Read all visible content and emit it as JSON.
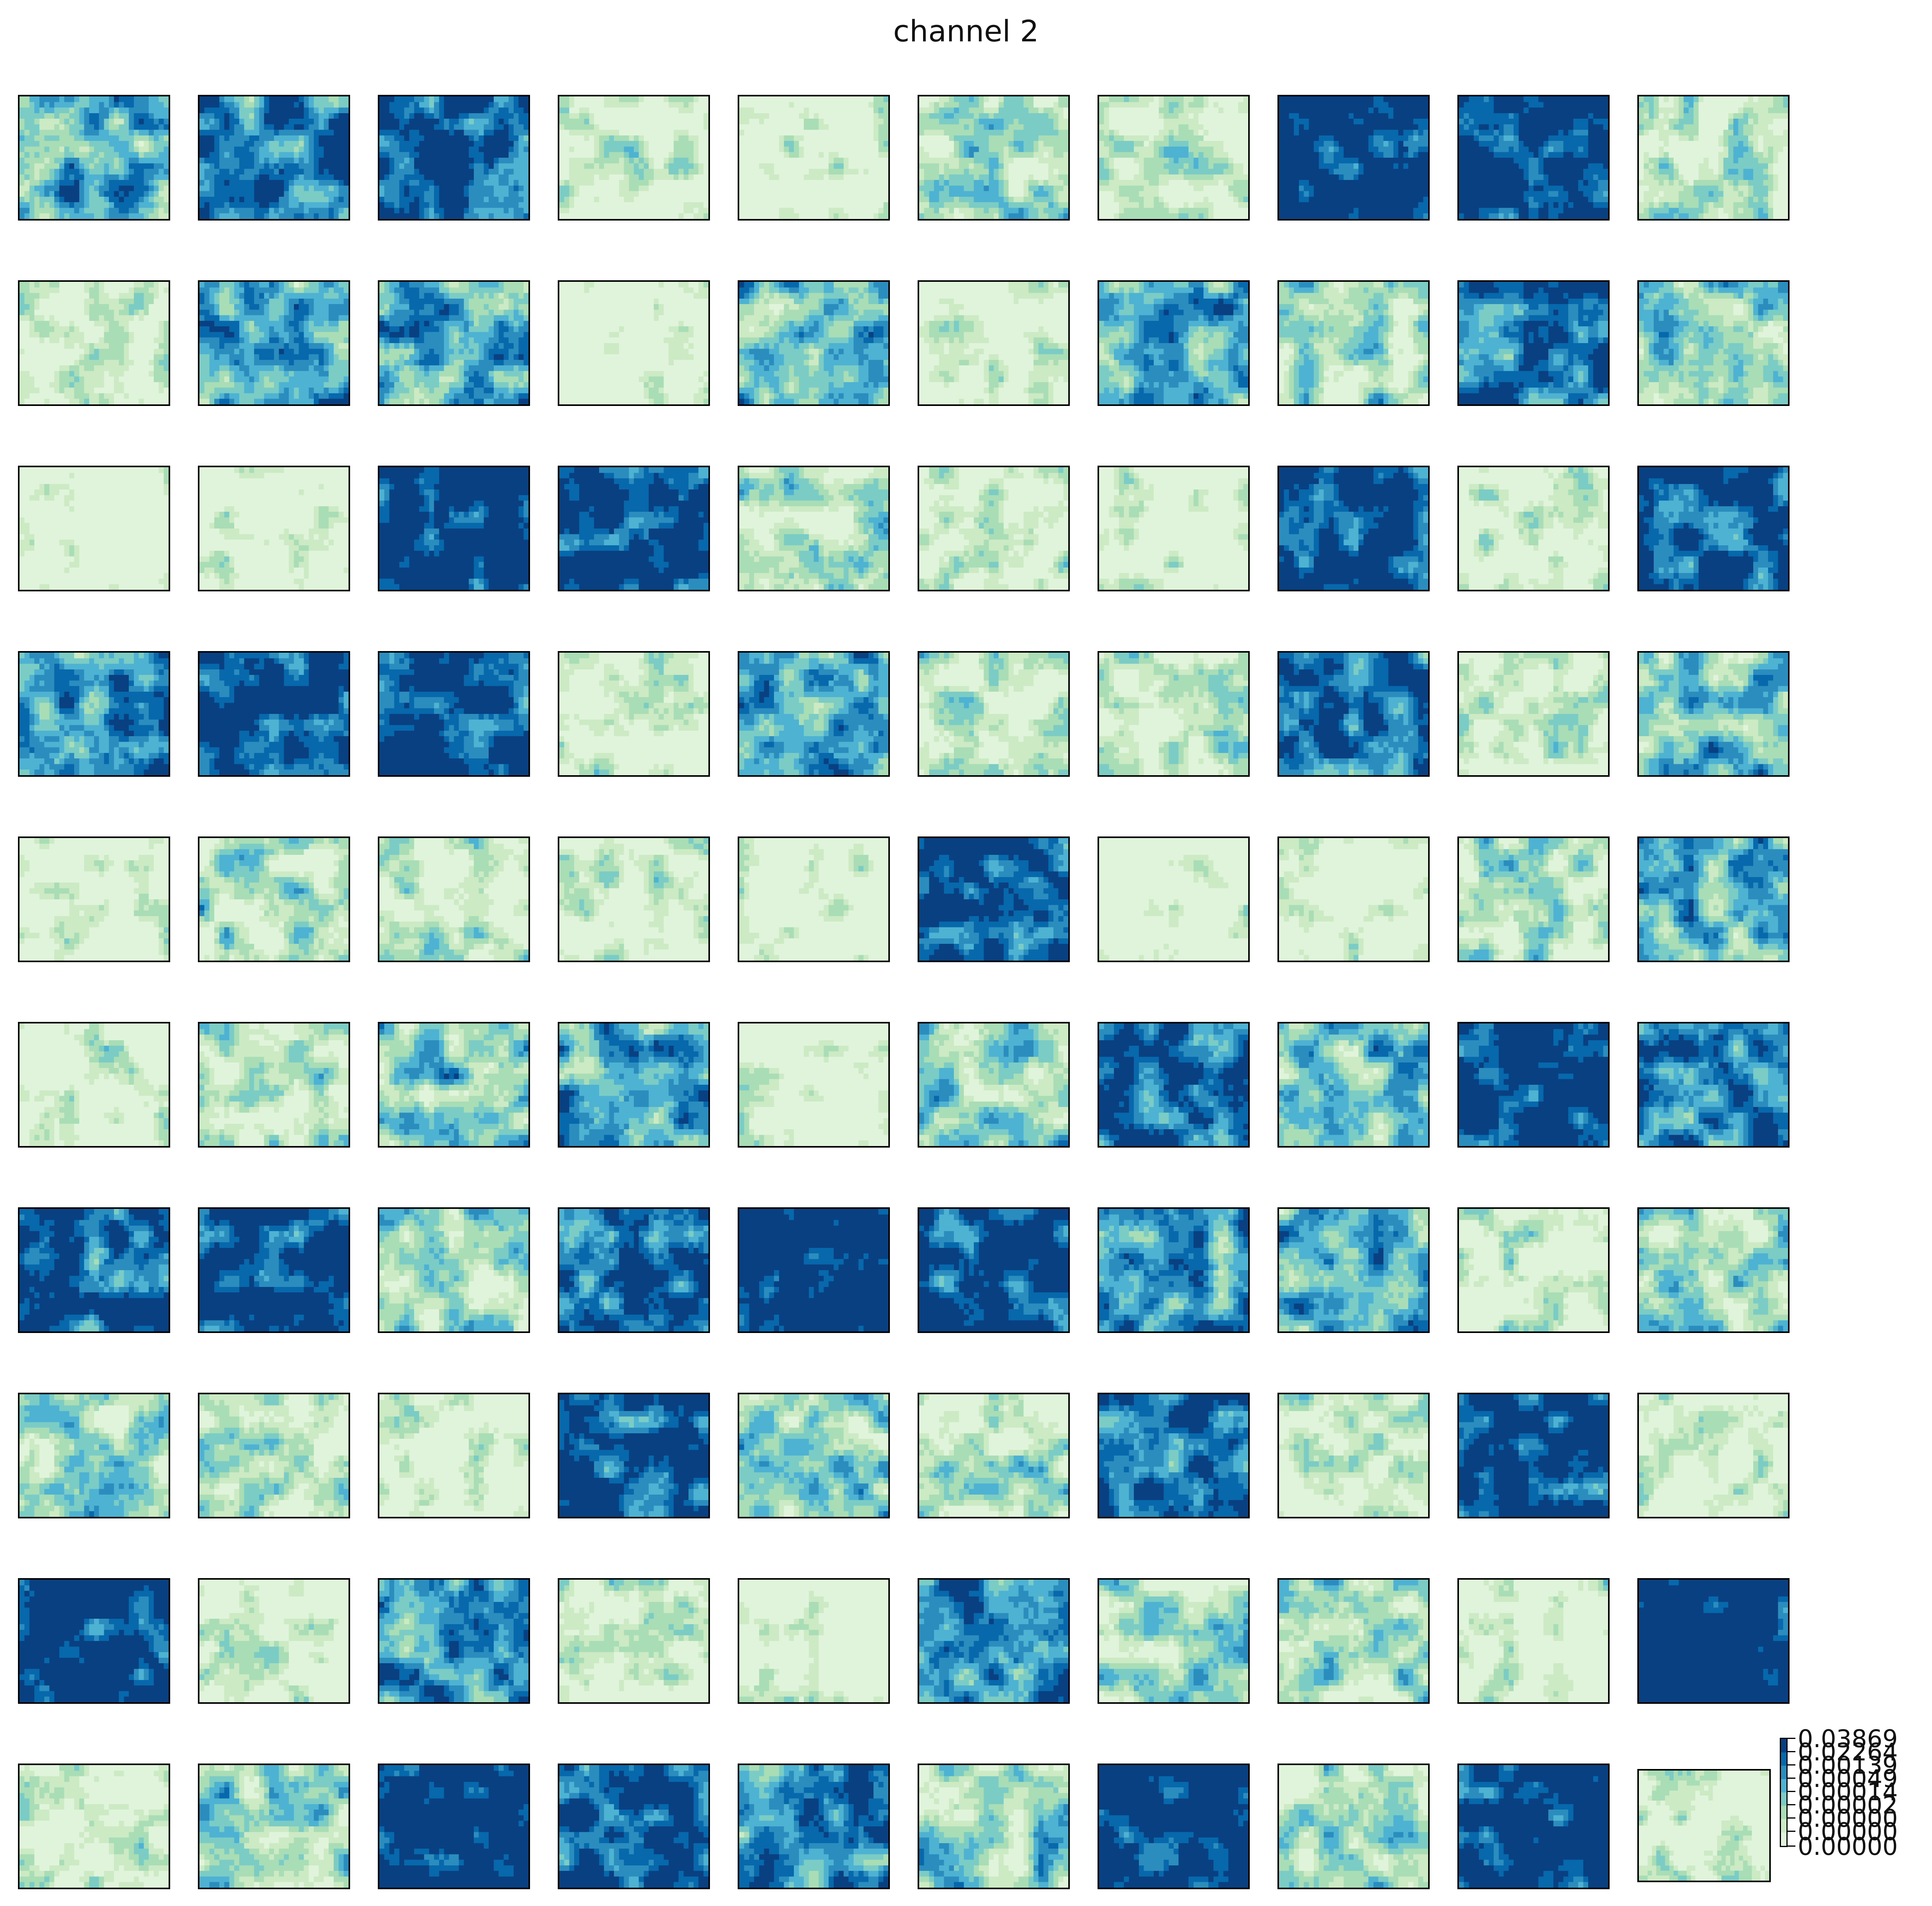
{
  "title": "channel 2",
  "chart_data": {
    "type": "heatmap",
    "title": "channel 2",
    "grid": "10x10 small multiples",
    "colormap": "GnBu",
    "palette": [
      "#e0f3db",
      "#ccebc5",
      "#a8ddb5",
      "#7bccc4",
      "#4eb3d3",
      "#2b8cbe",
      "#0868ac",
      "#084081"
    ],
    "colorbar": {
      "ticks": [
        "0.03869",
        "0.02264",
        "0.00139",
        "0.00049",
        "0.00014",
        "0.00002",
        "0.00000",
        "0.00000"
      ],
      "min_label": "0.00000",
      "max_label": "0.03869",
      "scale": "nonlinear"
    },
    "panels": {
      "rows": 10,
      "cols": 10,
      "darkness": [
        [
          0.55,
          0.7,
          0.78,
          0.25,
          0.12,
          0.35,
          0.22,
          0.88,
          0.82,
          0.25
        ],
        [
          0.2,
          0.55,
          0.55,
          0.08,
          0.5,
          0.15,
          0.55,
          0.35,
          0.75,
          0.42
        ],
        [
          0.05,
          0.1,
          0.92,
          0.85,
          0.3,
          0.18,
          0.1,
          0.82,
          0.15,
          0.78
        ],
        [
          0.62,
          0.85,
          0.85,
          0.12,
          0.55,
          0.25,
          0.22,
          0.72,
          0.18,
          0.48
        ],
        [
          0.1,
          0.3,
          0.25,
          0.18,
          0.08,
          0.82,
          0.05,
          0.05,
          0.32,
          0.5
        ],
        [
          0.15,
          0.28,
          0.45,
          0.6,
          0.12,
          0.42,
          0.72,
          0.45,
          0.88,
          0.65
        ],
        [
          0.72,
          0.85,
          0.35,
          0.78,
          0.88,
          0.8,
          0.6,
          0.5,
          0.18,
          0.35
        ],
        [
          0.32,
          0.32,
          0.15,
          0.78,
          0.42,
          0.32,
          0.72,
          0.2,
          0.82,
          0.15
        ],
        [
          0.85,
          0.15,
          0.62,
          0.18,
          0.05,
          0.65,
          0.35,
          0.35,
          0.12,
          0.92
        ],
        [
          0.2,
          0.42,
          0.88,
          0.82,
          0.65,
          0.4,
          0.92,
          0.3,
          0.85,
          0.15
        ]
      ]
    }
  }
}
